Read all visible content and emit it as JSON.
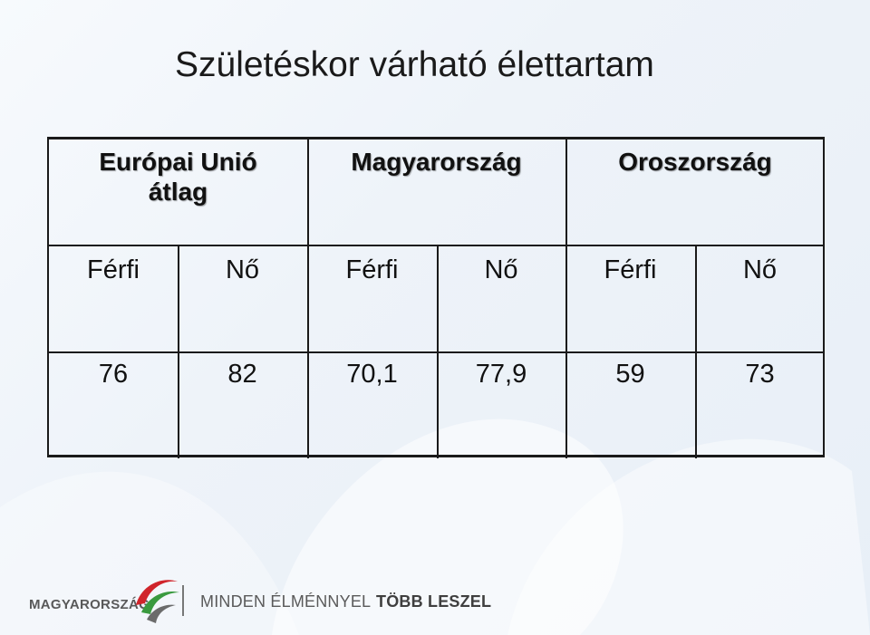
{
  "title": "Születéskor várható élettartam",
  "table": {
    "headers": [
      {
        "label_line1": "Európai Unió",
        "label_line2": "átlag"
      },
      {
        "label_line1": "Magyarország",
        "label_line2": ""
      },
      {
        "label_line1": "Oroszország",
        "label_line2": ""
      }
    ],
    "subheaders": [
      "Férfi",
      "Nő",
      "Férfi",
      "Nő",
      "Férfi",
      "Nő"
    ],
    "values": [
      "76",
      "82",
      "70,1",
      "77,9",
      "59",
      "73"
    ]
  },
  "footer": {
    "brand": "MAGYARORSZÁG",
    "slogan_regular": "MINDEN ÉLMÉNNYEL",
    "slogan_bold": "TÖBB LESZEL",
    "colors": {
      "red": "#d0242b",
      "green": "#3a9a3f",
      "gray": "#6b6b6b"
    }
  }
}
